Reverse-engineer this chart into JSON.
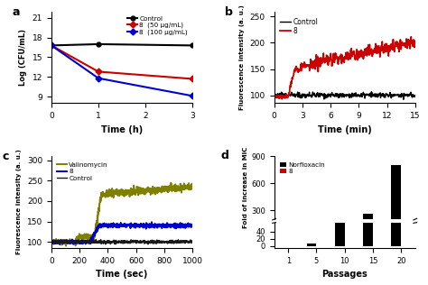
{
  "panel_a": {
    "xlabel": "Time (h)",
    "ylabel": "Log (CFU/mL)",
    "xlim": [
      0,
      3
    ],
    "ylim": [
      8,
      22
    ],
    "yticks": [
      9,
      12,
      15,
      18,
      21
    ],
    "xticks": [
      0,
      1,
      2,
      3
    ],
    "control": {
      "x": [
        0,
        1,
        3
      ],
      "y": [
        16.8,
        17.0,
        16.8
      ],
      "color": "#000000",
      "marker": "o",
      "label": "Control"
    },
    "compound50": {
      "x": [
        0,
        1,
        3
      ],
      "y": [
        16.8,
        12.8,
        11.7
      ],
      "color": "#cc0000",
      "marker": "D",
      "label": "8  (50 μg/mL)"
    },
    "compound100": {
      "x": [
        0,
        1,
        3
      ],
      "y": [
        16.8,
        11.8,
        9.1
      ],
      "color": "#0000cc",
      "marker": "D",
      "label": "8  (100 μg/mL)"
    }
  },
  "panel_b": {
    "xlabel": "Time (min)",
    "ylabel": "Fluorescence intensity (a. u.)",
    "xlim": [
      0,
      15
    ],
    "ylim": [
      85,
      260
    ],
    "yticks": [
      100,
      150,
      200,
      250
    ],
    "xticks": [
      0,
      3,
      6,
      9,
      12,
      15
    ],
    "control_color": "#000000",
    "compound_color": "#cc0000",
    "control_label": "Control",
    "compound_label": "8"
  },
  "panel_c": {
    "xlabel": "Time (sec)",
    "ylabel": "Fluorescence intensity (a. u.)",
    "xlim": [
      0,
      1000
    ],
    "ylim": [
      85,
      310
    ],
    "yticks": [
      100,
      150,
      200,
      250,
      300
    ],
    "xticks": [
      0,
      200,
      400,
      600,
      800,
      1000
    ],
    "valinomycin_color": "#808000",
    "compound_color": "#0000cc",
    "control_color": "#1a1a1a",
    "valinomycin_label": "Valinomycin",
    "compound_label": "8",
    "control_label": "Control"
  },
  "panel_d": {
    "xlabel": "Passages",
    "ylabel": "Fold of increase in MIC",
    "norfloxacin_values": [
      1,
      8,
      64,
      256,
      800
    ],
    "compound_values": [
      1,
      1,
      1,
      1,
      1
    ],
    "norfloxacin_color": "#000000",
    "compound_color": "#cc0000",
    "norfloxacin_label": "Norfloxacin",
    "compound_label": "8",
    "xtick_labels": [
      "1",
      "5",
      "10",
      "15",
      "20"
    ],
    "bar_width": 0.35,
    "ylim_lower": [
      0,
      64
    ],
    "ylim_upper": [
      200,
      900
    ],
    "yticks_lower": [
      0,
      20,
      40
    ],
    "yticks_upper": [
      300,
      600,
      900
    ]
  }
}
